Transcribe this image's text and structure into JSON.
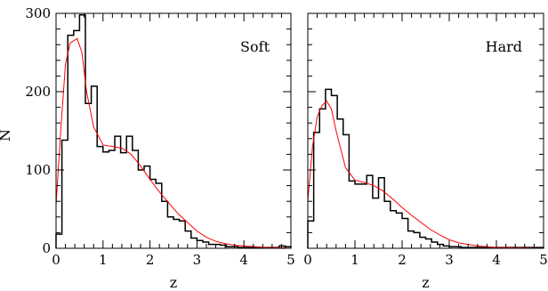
{
  "chart_data": [
    {
      "type": "bar",
      "title": "Soft",
      "xlabel": "z",
      "ylabel": "N",
      "xlim": [
        0,
        5
      ],
      "ylim": [
        0,
        300
      ],
      "bin_width": 0.125,
      "x_ticks": [
        "0",
        "1",
        "2",
        "3",
        "4",
        "5"
      ],
      "y_ticks": [
        "0",
        "100",
        "200",
        "300"
      ],
      "series": [
        {
          "kind": "histogram",
          "color": "#000000",
          "values": [
            18,
            138,
            272,
            278,
            298,
            185,
            207,
            130,
            123,
            125,
            143,
            122,
            143,
            125,
            100,
            105,
            88,
            83,
            60,
            40,
            37,
            35,
            22,
            13,
            10,
            8,
            5,
            5,
            4,
            2,
            2,
            1,
            1,
            1,
            1,
            1,
            1,
            1,
            3,
            2
          ]
        },
        {
          "kind": "smooth-curve",
          "color": "#ff0000",
          "x": [
            0.0,
            0.1,
            0.2,
            0.3,
            0.45,
            0.55,
            0.65,
            0.8,
            1.0,
            1.2,
            1.4,
            1.6,
            1.8,
            2.0,
            2.2,
            2.4,
            2.6,
            2.8,
            3.0,
            3.2,
            3.4,
            3.6,
            3.8,
            4.0,
            4.5,
            4.9
          ],
          "y": [
            55,
            150,
            235,
            262,
            268,
            250,
            200,
            155,
            132,
            130,
            128,
            120,
            105,
            88,
            72,
            58,
            44,
            33,
            22,
            14,
            9,
            6,
            4,
            3,
            1,
            0.5
          ]
        }
      ]
    },
    {
      "type": "bar",
      "title": "Hard",
      "xlabel": "z",
      "ylabel": "",
      "xlim": [
        0,
        5
      ],
      "ylim": [
        0,
        300
      ],
      "bin_width": 0.125,
      "x_ticks": [
        "0",
        "1",
        "2",
        "3",
        "4",
        "5"
      ],
      "y_ticks": [],
      "series": [
        {
          "kind": "histogram",
          "color": "#000000",
          "values": [
            35,
            148,
            178,
            203,
            195,
            165,
            145,
            86,
            82,
            82,
            93,
            64,
            90,
            60,
            48,
            45,
            38,
            22,
            20,
            14,
            12,
            8,
            5,
            3,
            2,
            2,
            1,
            1,
            1,
            1,
            1,
            1,
            1,
            1,
            1,
            1,
            1,
            1,
            1,
            1
          ]
        },
        {
          "kind": "smooth-curve",
          "color": "#ff0000",
          "x": [
            0.0,
            0.1,
            0.2,
            0.3,
            0.4,
            0.5,
            0.6,
            0.8,
            1.0,
            1.2,
            1.4,
            1.6,
            1.8,
            2.0,
            2.2,
            2.4,
            2.6,
            2.8,
            3.0,
            3.2,
            3.4,
            3.6,
            3.8,
            4.0,
            4.5,
            4.9
          ],
          "y": [
            60,
            130,
            168,
            182,
            188,
            178,
            150,
            103,
            87,
            84,
            80,
            73,
            63,
            52,
            42,
            33,
            24,
            17,
            11,
            7,
            5,
            3,
            2,
            1,
            0.5,
            0.2
          ]
        }
      ]
    }
  ]
}
